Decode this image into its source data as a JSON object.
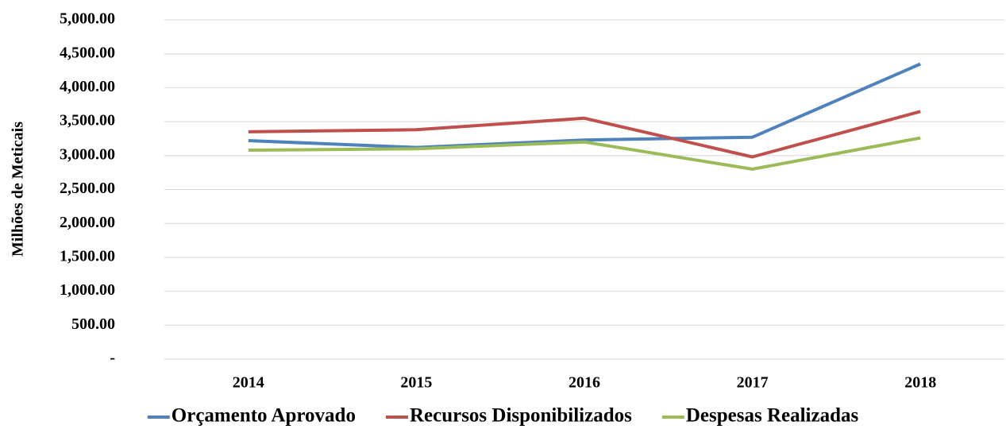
{
  "chart_data": {
    "type": "line",
    "y_label": "Milhões de Meticais",
    "categories": [
      "2014",
      "2015",
      "2016",
      "2017",
      "2018"
    ],
    "series": [
      {
        "name": "Orçamento Aprovado",
        "color": "#4f81bd",
        "values": [
          3220,
          3120,
          3230,
          3270,
          4350
        ]
      },
      {
        "name": "Recursos Disponibilizados",
        "color": "#c0504d",
        "values": [
          3350,
          3380,
          3550,
          2980,
          3650
        ]
      },
      {
        "name": "Despesas Realizadas",
        "color": "#9bbb59",
        "values": [
          3080,
          3100,
          3200,
          2800,
          3260
        ]
      }
    ],
    "ylim": [
      0,
      5000
    ],
    "yticks": [
      {
        "value": 0,
        "label": "-"
      },
      {
        "value": 500,
        "label": "500.00"
      },
      {
        "value": 1000,
        "label": "1,000.00"
      },
      {
        "value": 1500,
        "label": "1,500.00"
      },
      {
        "value": 2000,
        "label": "2,000.00"
      },
      {
        "value": 2500,
        "label": "2,500.00"
      },
      {
        "value": 3000,
        "label": "3,000.00"
      },
      {
        "value": 3500,
        "label": "3,500.00"
      },
      {
        "value": 4000,
        "label": "4,000.00"
      },
      {
        "value": 4500,
        "label": "4,500.00"
      },
      {
        "value": 5000,
        "label": "5,000.00"
      }
    ],
    "grid": true,
    "legend": "bottom"
  }
}
